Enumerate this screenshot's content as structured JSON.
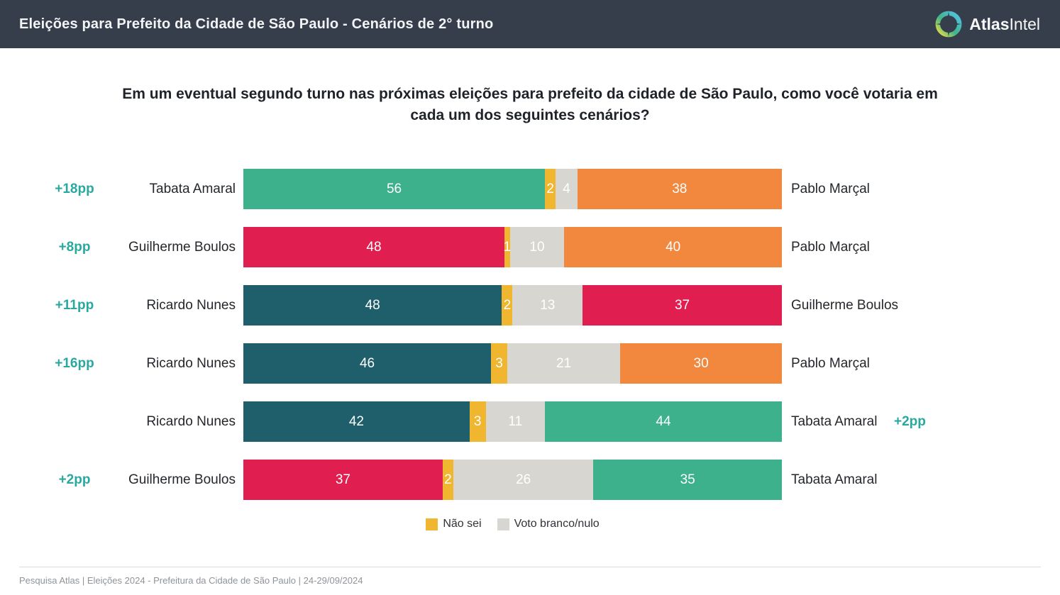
{
  "header": {
    "title": "Eleições para Prefeito da Cidade de São Paulo - Cenários de 2° turno",
    "brand_bold": "Atlas",
    "brand_light": "Intel",
    "logo": "atlasintel-compass-ring"
  },
  "question": "Em um eventual segundo turno nas próximas eleições para prefeito da cidade de São Paulo, como você votaria em cada um dos seguintes cenários?",
  "colors": {
    "header_bg": "#363D4B",
    "lead_text": "#29A8A0",
    "nao_sei": "#F0B62F",
    "branco_nulo": "#D8D6D1",
    "candidates": {
      "Tabata Amaral": "#3CB18B",
      "Pablo Marçal": "#F1883E",
      "Guilherme Boulos": "#E01E50",
      "Ricardo Nunes": "#1E5F6B"
    }
  },
  "legend": [
    {
      "key": "nao_sei",
      "label": "Não sei"
    },
    {
      "key": "branco_nulo",
      "label": "Voto branco/nulo"
    }
  ],
  "footer": "Pesquisa Atlas  |  Eleições 2024 - Prefeitura da Cidade de São Paulo  |  24-29/09/2024",
  "chart_data": {
    "type": "bar",
    "orientation": "horizontal-stacked",
    "axis_range": [
      0,
      100
    ],
    "grid": false,
    "legend_position": "bottom-center",
    "segment_order": [
      "left_candidate",
      "nao_sei",
      "branco_nulo",
      "right_candidate"
    ],
    "rows": [
      {
        "lead": "+18pp",
        "lead_side": "left",
        "left": "Tabata Amaral",
        "right": "Pablo Marçal",
        "left_value": 56,
        "nao_sei": 2,
        "branco_nulo": 4,
        "right_value": 38
      },
      {
        "lead": "+8pp",
        "lead_side": "left",
        "left": "Guilherme Boulos",
        "right": "Pablo Marçal",
        "left_value": 48,
        "nao_sei": 1,
        "branco_nulo": 10,
        "right_value": 40
      },
      {
        "lead": "+11pp",
        "lead_side": "left",
        "left": "Ricardo Nunes",
        "right": "Guilherme Boulos",
        "left_value": 48,
        "nao_sei": 2,
        "branco_nulo": 13,
        "right_value": 37
      },
      {
        "lead": "+16pp",
        "lead_side": "left",
        "left": "Ricardo Nunes",
        "right": "Pablo Marçal",
        "left_value": 46,
        "nao_sei": 3,
        "branco_nulo": 21,
        "right_value": 30
      },
      {
        "lead": "+2pp",
        "lead_side": "right",
        "left": "Ricardo Nunes",
        "right": "Tabata Amaral",
        "left_value": 42,
        "nao_sei": 3,
        "branco_nulo": 11,
        "right_value": 44
      },
      {
        "lead": "+2pp",
        "lead_side": "left",
        "left": "Guilherme Boulos",
        "right": "Tabata Amaral",
        "left_value": 37,
        "nao_sei": 2,
        "branco_nulo": 26,
        "right_value": 35
      }
    ]
  }
}
